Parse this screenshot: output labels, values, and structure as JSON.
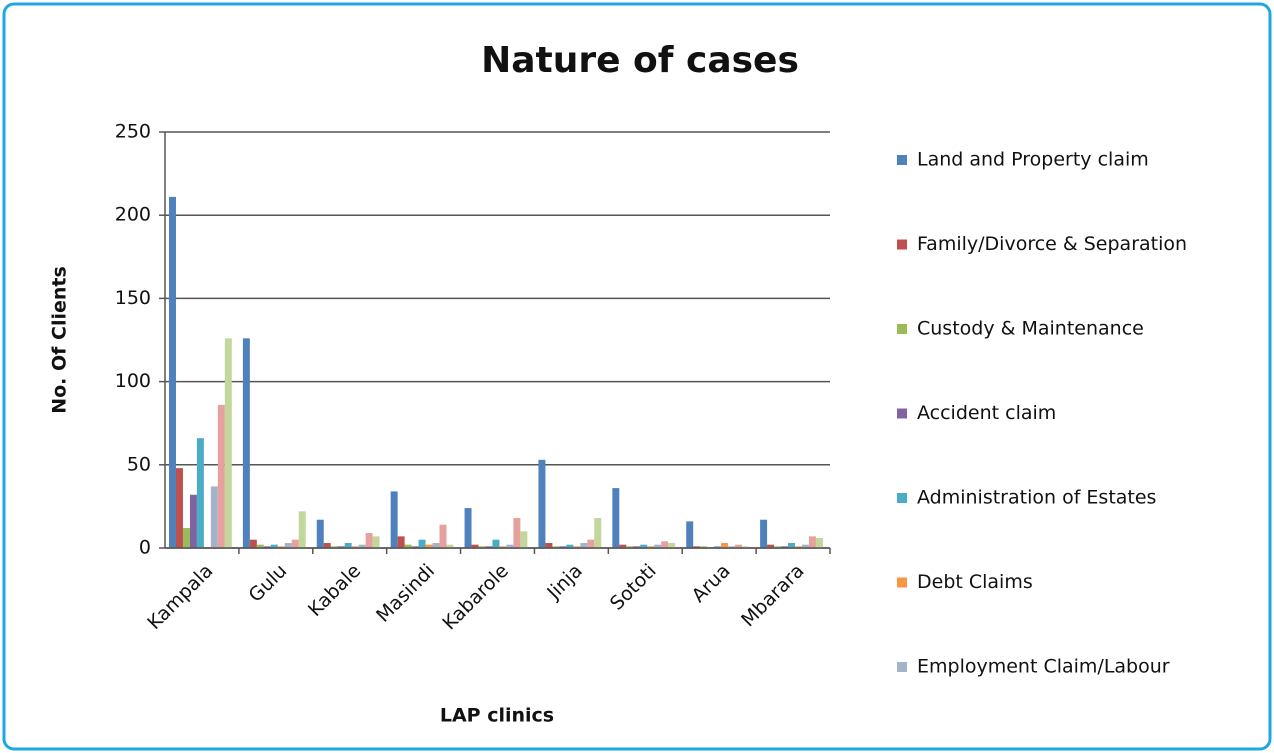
{
  "chart_data": {
    "type": "bar",
    "title": "Nature of cases",
    "x_label": "LAP clinics",
    "y_label": "No. Of Clients",
    "categories": [
      "Kampala",
      "Gulu",
      "Kabale",
      "Masindi",
      "Kabarole",
      "Jinja",
      "Sototi",
      "Arua",
      "Mbarara"
    ],
    "series": [
      {
        "name": "Land and Property claim",
        "color": "#4f81bd",
        "values": [
          211,
          126,
          17,
          34,
          24,
          53,
          36,
          16,
          17
        ]
      },
      {
        "name": "Family/Divorce & Separation",
        "color": "#c0504d",
        "values": [
          48,
          5,
          3,
          7,
          2,
          3,
          2,
          1,
          2
        ]
      },
      {
        "name": "Custody & Maintenance",
        "color": "#9bbb59",
        "values": [
          12,
          2,
          1,
          2,
          1,
          1,
          1,
          1,
          1
        ]
      },
      {
        "name": "Accident claim",
        "color": "#8064a2",
        "values": [
          32,
          1,
          1,
          1,
          1,
          1,
          1,
          0,
          1
        ]
      },
      {
        "name": "Administration of Estates",
        "color": "#4bacc6",
        "values": [
          66,
          2,
          3,
          5,
          5,
          2,
          2,
          1,
          3
        ]
      },
      {
        "name": "Debt Claims",
        "color": "#f79646",
        "values": [
          0,
          1,
          1,
          2,
          1,
          1,
          1,
          3,
          1
        ]
      },
      {
        "name": "Employment Claim/Labour",
        "color": "#a5b3c9",
        "values": [
          37,
          3,
          2,
          3,
          2,
          3,
          2,
          1,
          2
        ]
      },
      {
        "name": null,
        "color": "#e6a09e",
        "values": [
          86,
          5,
          9,
          14,
          18,
          5,
          4,
          2,
          7
        ]
      },
      {
        "name": null,
        "color": "#c3d69b",
        "values": [
          126,
          22,
          7,
          2,
          10,
          18,
          3,
          1,
          6
        ]
      }
    ],
    "ylim": [
      0,
      250
    ],
    "yticks": [
      0,
      50,
      100,
      150,
      200,
      250
    ],
    "grid": true,
    "legend": "right"
  }
}
